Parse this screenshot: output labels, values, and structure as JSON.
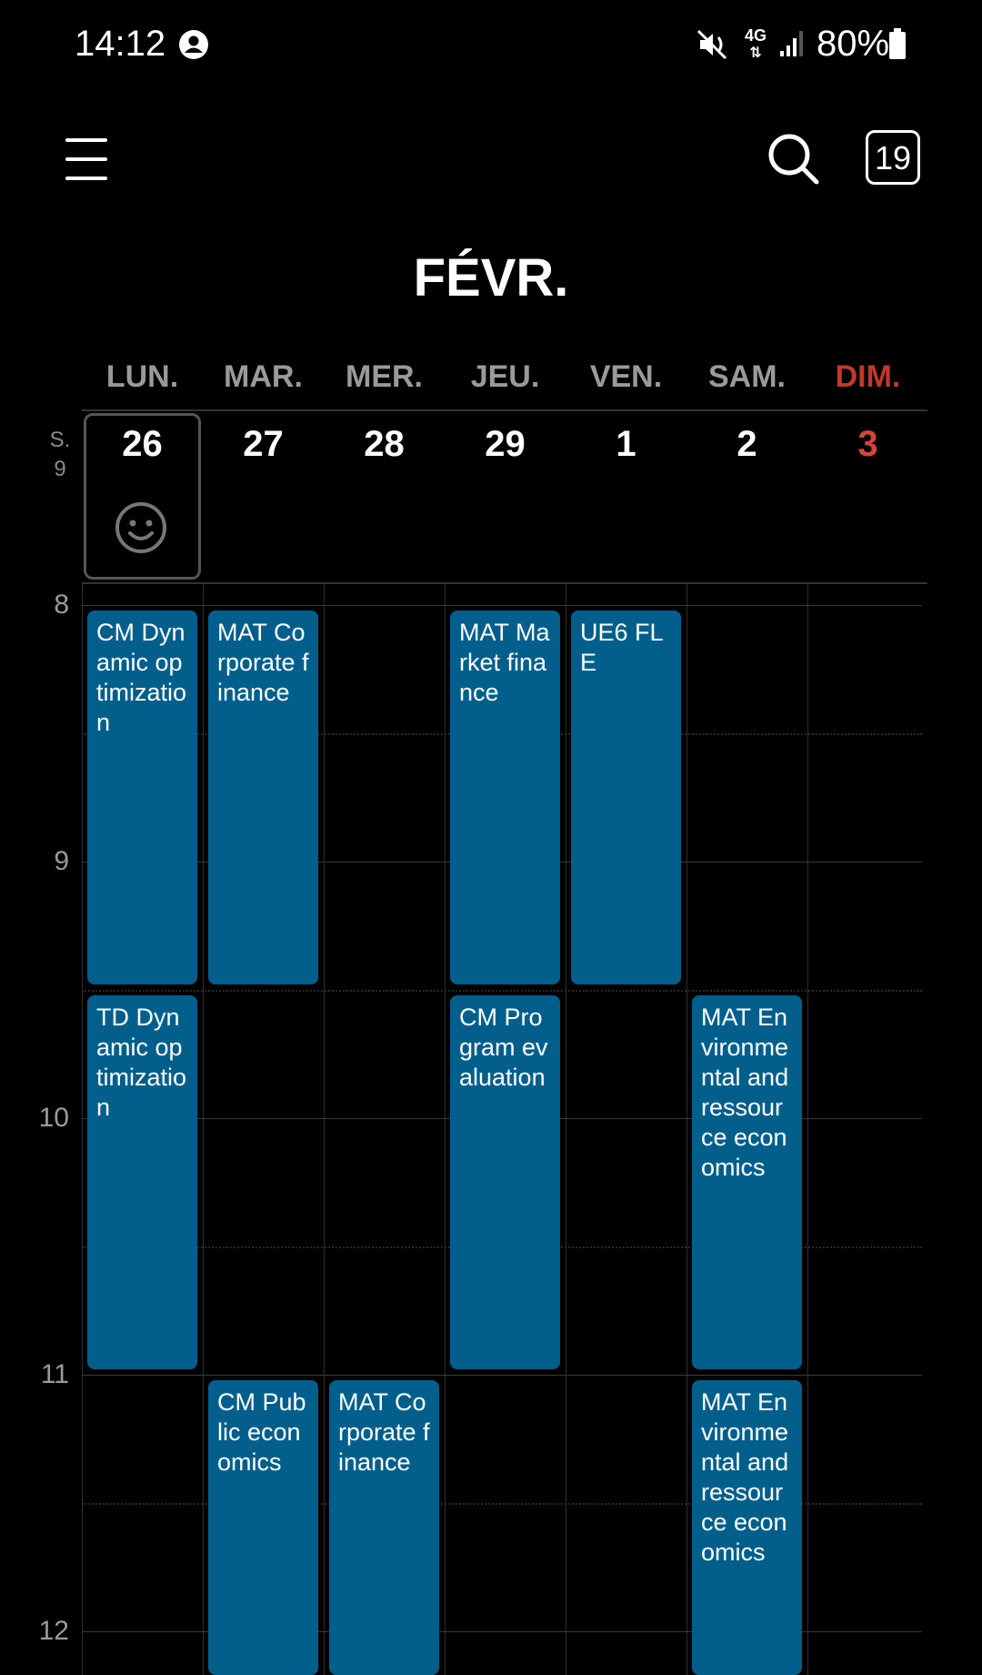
{
  "status_bar": {
    "time": "14:12",
    "battery": "80%",
    "network": "4G",
    "icons": [
      "account-icon",
      "mute-icon",
      "network-4g-icon",
      "signal-icon",
      "battery-icon"
    ]
  },
  "toolbar": {
    "today_date": "19",
    "icons": [
      "menu-icon",
      "search-icon",
      "calendar-today-icon"
    ]
  },
  "header": {
    "month": "FÉVR."
  },
  "week": {
    "label_top": "S.",
    "label_num": "9",
    "days": [
      {
        "name": "LUN.",
        "num": "26",
        "is_today": true,
        "is_sunday": false
      },
      {
        "name": "MAR.",
        "num": "27",
        "is_today": false,
        "is_sunday": false
      },
      {
        "name": "MER.",
        "num": "28",
        "is_today": false,
        "is_sunday": false
      },
      {
        "name": "JEU.",
        "num": "29",
        "is_today": false,
        "is_sunday": false
      },
      {
        "name": "VEN.",
        "num": "1",
        "is_today": false,
        "is_sunday": false
      },
      {
        "name": "SAM.",
        "num": "2",
        "is_today": false,
        "is_sunday": false
      },
      {
        "name": "DIM.",
        "num": "3",
        "is_today": false,
        "is_sunday": true
      }
    ]
  },
  "hours": [
    "8",
    "9",
    "10",
    "11",
    "12"
  ],
  "events": [
    {
      "title": "CM Dynamic optimization",
      "day": 0,
      "start": "08:00",
      "end": "09:30"
    },
    {
      "title": "MAT Corporate finance",
      "day": 1,
      "start": "08:00",
      "end": "09:30"
    },
    {
      "title": "MAT Market finance",
      "day": 3,
      "start": "08:00",
      "end": "09:30"
    },
    {
      "title": "UE6 FLE",
      "day": 4,
      "start": "08:00",
      "end": "09:30"
    },
    {
      "title": "TD Dynamic optimization",
      "day": 0,
      "start": "09:30",
      "end": "11:00"
    },
    {
      "title": "CM Program evaluation",
      "day": 3,
      "start": "09:30",
      "end": "11:00"
    },
    {
      "title": "MAT Environmental and ressource economics",
      "day": 5,
      "start": "09:30",
      "end": "11:00"
    },
    {
      "title": "CM Public economics",
      "day": 1,
      "start": "11:00",
      "end": "12:30"
    },
    {
      "title": "MAT Corporate finance",
      "day": 2,
      "start": "11:00",
      "end": "12:30"
    },
    {
      "title": "MAT Environmental and ressource economics",
      "day": 5,
      "start": "11:00",
      "end": "12:30"
    }
  ],
  "colors": {
    "event": "#025f8c",
    "sunday": "#c0392b",
    "background": "#000000"
  }
}
